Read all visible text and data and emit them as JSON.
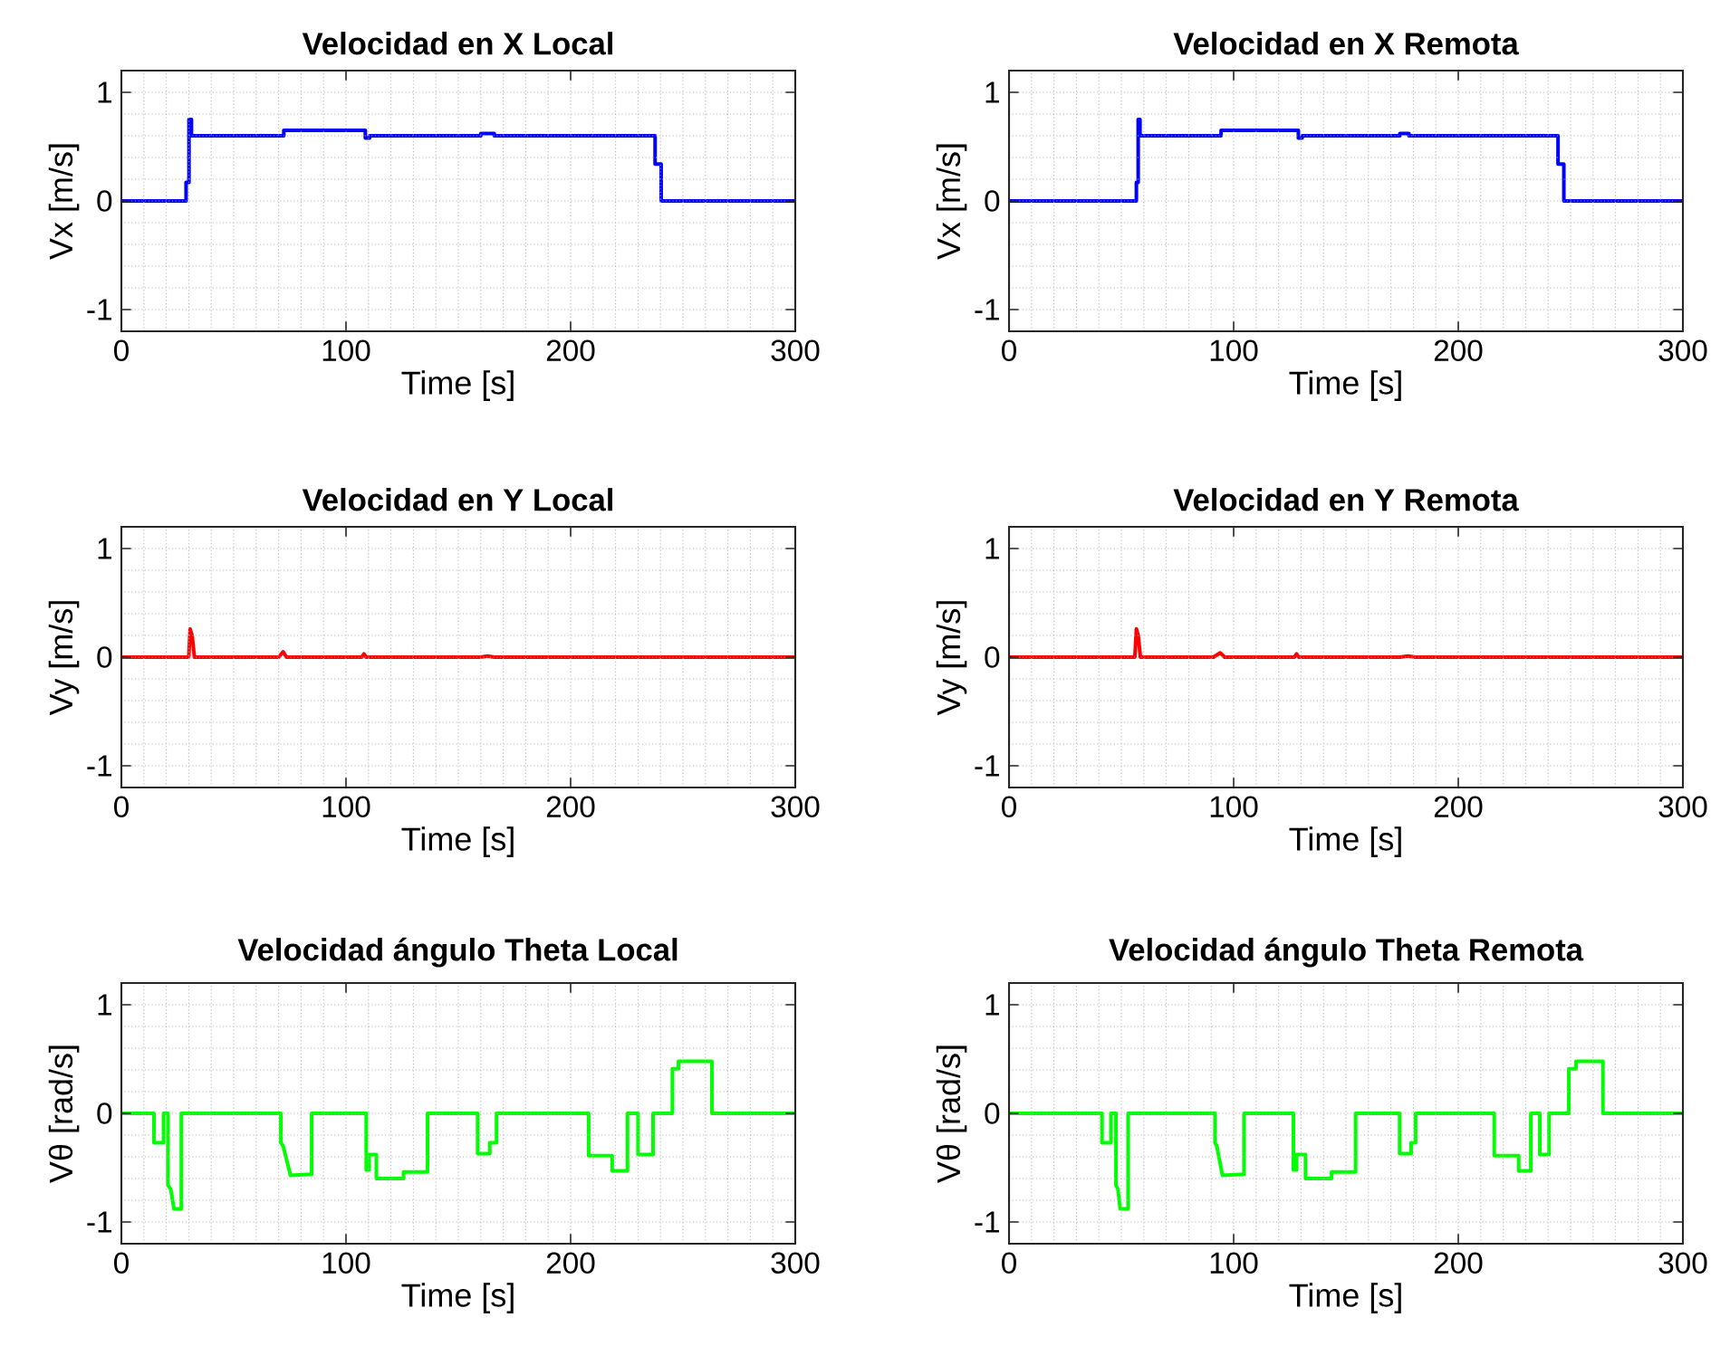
{
  "chart_data": [
    {
      "type": "line",
      "title": "Velocidad en X Local",
      "xlabel": "Time [s]",
      "ylabel": "Vx [m/s]",
      "xlim": [
        0,
        300
      ],
      "xticks": [
        0,
        100,
        200,
        300
      ],
      "ylim": [
        -1.2,
        1.2
      ],
      "yticks": [
        -1,
        0,
        1
      ],
      "grid": true,
      "series": [
        {
          "color": "#0000ff",
          "x": [
            0,
            28.8,
            28.8,
            30.1,
            30.1,
            31.2,
            31.2,
            72.3,
            72.3,
            108.6,
            108.6,
            110.5,
            110.5,
            160,
            160,
            166,
            166,
            237.6,
            237.6,
            240.3,
            240.3,
            300
          ],
          "values": [
            0,
            0,
            0.17,
            0.17,
            0.75,
            0.75,
            0.6,
            0.6,
            0.65,
            0.65,
            0.58,
            0.58,
            0.6,
            0.6,
            0.62,
            0.62,
            0.6,
            0.6,
            0.34,
            0.34,
            0,
            0
          ]
        }
      ]
    },
    {
      "type": "line",
      "title": "Velocidad en X Remota",
      "xlabel": "Time [s]",
      "ylabel": "Vx [m/s]",
      "xlim": [
        0,
        300
      ],
      "xticks": [
        0,
        100,
        200,
        300
      ],
      "ylim": [
        -1.2,
        1.2
      ],
      "yticks": [
        -1,
        0,
        1
      ],
      "grid": true,
      "series": [
        {
          "color": "#0000ff",
          "x": [
            0,
            56.7,
            56.7,
            57.5,
            57.5,
            58.3,
            58.3,
            94.4,
            94.4,
            128.8,
            128.8,
            130.5,
            130.5,
            174,
            174,
            178,
            178,
            244.4,
            244.4,
            247,
            247,
            300
          ],
          "values": [
            0,
            0,
            0.17,
            0.17,
            0.75,
            0.75,
            0.6,
            0.6,
            0.65,
            0.65,
            0.58,
            0.58,
            0.6,
            0.6,
            0.62,
            0.62,
            0.6,
            0.6,
            0.34,
            0.34,
            0,
            0
          ]
        }
      ]
    },
    {
      "type": "line",
      "title": "Velocidad en Y Local",
      "xlabel": "Time [s]",
      "ylabel": "Vy [m/s]",
      "xlim": [
        0,
        300
      ],
      "xticks": [
        0,
        100,
        200,
        300
      ],
      "ylim": [
        -1.2,
        1.2
      ],
      "yticks": [
        -1,
        0,
        1
      ],
      "grid": true,
      "series": [
        {
          "color": "#ff0000",
          "x": [
            0,
            30,
            30.6,
            31.5,
            32.5,
            70,
            72,
            73.5,
            107,
            108,
            109,
            160,
            163,
            166,
            300
          ],
          "values": [
            0,
            0,
            0.26,
            0.2,
            0,
            0,
            0.05,
            0,
            0,
            0.03,
            0,
            0,
            0.01,
            0,
            0
          ]
        }
      ]
    },
    {
      "type": "line",
      "title": "Velocidad en Y Remota",
      "xlabel": "Time [s]",
      "ylabel": "Vy [m/s]",
      "xlim": [
        0,
        300
      ],
      "xticks": [
        0,
        100,
        200,
        300
      ],
      "ylim": [
        -1.2,
        1.2
      ],
      "yticks": [
        -1,
        0,
        1
      ],
      "grid": true,
      "series": [
        {
          "color": "#ff0000",
          "x": [
            0,
            56,
            56.7,
            57.5,
            58.5,
            91,
            94,
            96,
            127,
            128,
            129,
            174,
            177.5,
            181,
            300
          ],
          "values": [
            0,
            0,
            0.26,
            0.2,
            0,
            0,
            0.04,
            0,
            0,
            0.03,
            0,
            0,
            0.01,
            0,
            0
          ]
        }
      ]
    },
    {
      "type": "line",
      "title": "Velocidad ángulo Theta Local",
      "xlabel": "Time [s]",
      "ylabel": "Vθ [rad/s]",
      "xlim": [
        0,
        300
      ],
      "xticks": [
        0,
        100,
        200,
        300
      ],
      "ylim": [
        -1.2,
        1.2
      ],
      "yticks": [
        -1,
        0,
        1
      ],
      "grid": true,
      "series": [
        {
          "color": "#00ff00",
          "x": [
            0,
            14.5,
            14.5,
            18.8,
            18.8,
            20.7,
            20.7,
            22,
            23.4,
            26.7,
            26.7,
            71,
            71,
            72,
            75.3,
            84.7,
            84.7,
            109,
            109,
            110.3,
            110.3,
            113.5,
            113.5,
            125.6,
            125.6,
            136.3,
            136.3,
            158.6,
            158.6,
            164,
            164,
            167,
            167,
            208,
            208,
            218.5,
            218.5,
            225.3,
            225.3,
            230,
            230,
            236.7,
            236.7,
            245.3,
            245.3,
            248,
            248,
            262.9,
            262.9,
            300
          ],
          "values": [
            0,
            0,
            -0.27,
            -0.27,
            0,
            0,
            -0.66,
            -0.7,
            -0.88,
            -0.88,
            0,
            0,
            -0.27,
            -0.3,
            -0.57,
            -0.56,
            0,
            0,
            -0.52,
            -0.52,
            -0.38,
            -0.38,
            -0.6,
            -0.6,
            -0.54,
            -0.54,
            0,
            0,
            -0.37,
            -0.37,
            -0.27,
            -0.27,
            0,
            0,
            -0.39,
            -0.39,
            -0.53,
            -0.53,
            0,
            0,
            -0.38,
            -0.38,
            0,
            0,
            0.41,
            0.41,
            0.48,
            0.48,
            0,
            0
          ]
        }
      ]
    },
    {
      "type": "line",
      "title": "Velocidad ángulo Theta Remota",
      "xlabel": "Time [s]",
      "ylabel": "Vθ [rad/s]",
      "xlim": [
        0,
        300
      ],
      "xticks": [
        0,
        100,
        200,
        300
      ],
      "ylim": [
        -1.2,
        1.2
      ],
      "yticks": [
        -1,
        0,
        1
      ],
      "grid": true,
      "series": [
        {
          "color": "#00ff00",
          "x": [
            0,
            41.4,
            41.4,
            45.4,
            45.4,
            47.6,
            47.6,
            48.5,
            49.5,
            53,
            53,
            91.7,
            91.7,
            92.5,
            95,
            104.6,
            104.6,
            126.6,
            126.6,
            128,
            128,
            132,
            132,
            143.6,
            143.6,
            154.3,
            154.3,
            173.9,
            173.9,
            179,
            179,
            181,
            181,
            216,
            216,
            226.9,
            226.9,
            232.3,
            232.3,
            236.3,
            236.3,
            240.4,
            240.4,
            249.2,
            249.2,
            252.4,
            252.4,
            264.4,
            264.4,
            300
          ],
          "values": [
            0,
            0,
            -0.27,
            -0.27,
            0,
            0,
            -0.66,
            -0.7,
            -0.88,
            -0.88,
            0,
            0,
            -0.27,
            -0.3,
            -0.57,
            -0.56,
            0,
            0,
            -0.52,
            -0.52,
            -0.38,
            -0.38,
            -0.6,
            -0.6,
            -0.54,
            -0.54,
            0,
            0,
            -0.37,
            -0.37,
            -0.27,
            -0.27,
            0,
            0,
            -0.39,
            -0.39,
            -0.53,
            -0.53,
            0,
            0,
            -0.38,
            -0.38,
            0,
            0,
            0.41,
            0.41,
            0.48,
            0.48,
            0,
            0
          ]
        }
      ]
    }
  ]
}
